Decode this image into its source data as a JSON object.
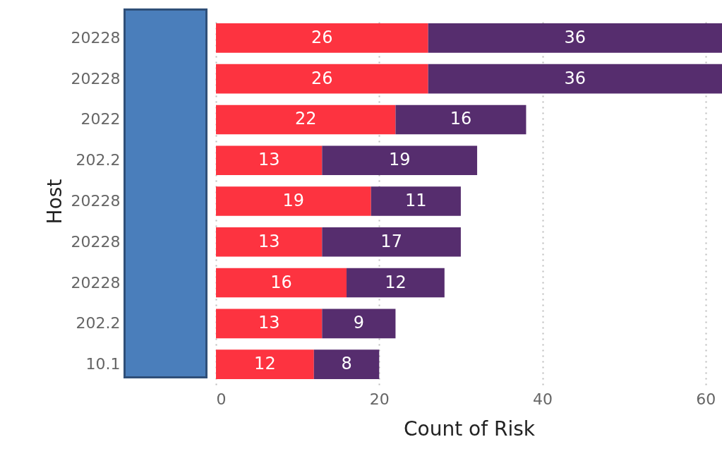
{
  "chart_data": {
    "type": "bar",
    "orientation": "horizontal",
    "stacked": true,
    "xlabel": "Count of Risk",
    "ylabel": "Host",
    "categories": [
      "20228",
      "20228",
      "2022",
      "202.2",
      "20228",
      "20228",
      "20228",
      "202.2",
      "10.1"
    ],
    "series": [
      {
        "color": "#fd3340",
        "values": [
          26,
          26,
          22,
          13,
          19,
          13,
          16,
          13,
          12
        ]
      },
      {
        "color": "#562d6e",
        "values": [
          36,
          36,
          16,
          19,
          11,
          17,
          12,
          9,
          8
        ]
      }
    ],
    "xlim": [
      0,
      62
    ],
    "xticks": [
      0,
      20,
      40,
      60
    ],
    "grid": "x",
    "data_labels": true
  }
}
